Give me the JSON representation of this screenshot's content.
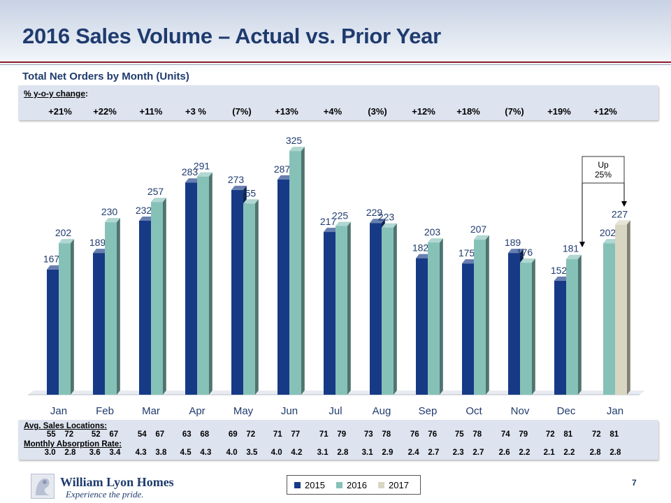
{
  "header": {
    "title": "2016 Sales Volume – Actual vs. Prior Year",
    "subtitle": "Total Net Orders by Month (Units)"
  },
  "yoy": {
    "label": "% y-o-y change",
    "values": [
      "+21%",
      "+22%",
      "+11%",
      "+3 %",
      "(7%)",
      "+13%",
      "+4%",
      "(3%)",
      "+12%",
      "+18%",
      "(7%)",
      "+19%",
      "+12%"
    ]
  },
  "chart_data": {
    "type": "bar",
    "categories": [
      "Jan",
      "Feb",
      "Mar",
      "Apr",
      "May",
      "Jun",
      "Jul",
      "Aug",
      "Sep",
      "Oct",
      "Nov",
      "Dec",
      "Jan"
    ],
    "series": [
      {
        "name": "2015",
        "color": "#173a86",
        "values": [
          167,
          189,
          232,
          283,
          273,
          287,
          217,
          229,
          182,
          175,
          189,
          152,
          null
        ]
      },
      {
        "name": "2016",
        "color": "#86c1b8",
        "values": [
          202,
          230,
          257,
          291,
          255,
          325,
          225,
          223,
          203,
          207,
          176,
          181,
          202
        ]
      },
      {
        "name": "2017",
        "color": "#d8d6c2",
        "values": [
          null,
          null,
          null,
          null,
          null,
          null,
          null,
          null,
          null,
          null,
          null,
          null,
          227
        ]
      }
    ],
    "ylim": [
      0,
      340
    ],
    "annotation": "Up\n25%"
  },
  "bottom": {
    "avg_label": "Avg. Sales Locations:",
    "avg_values": [
      "55    72",
      "52    67",
      "54    67",
      "63    68",
      "69    72",
      "71    77",
      "71    79",
      "73    78",
      "76    76",
      "75    78",
      "74    79",
      "72    81",
      "72    81"
    ],
    "absorption_label": "Monthly Absorption Rate:",
    "absorption_values": [
      "3.0    2.8",
      "3.6    3.4",
      "4.3    3.8",
      "4.5    4.3",
      "4.0    3.5",
      "4.0    4.2",
      "3.1    2.8",
      "3.1    2.9",
      "2.4    2.7",
      "2.3    2.7",
      "2.6    2.2",
      "2.1    2.2",
      "2.8    2.8"
    ]
  },
  "footer": {
    "logo_name": "William Lyon Homes",
    "logo_tagline": "Experience the pride.",
    "page_number": "7"
  },
  "legend": [
    "2015",
    "2016",
    "2017"
  ]
}
